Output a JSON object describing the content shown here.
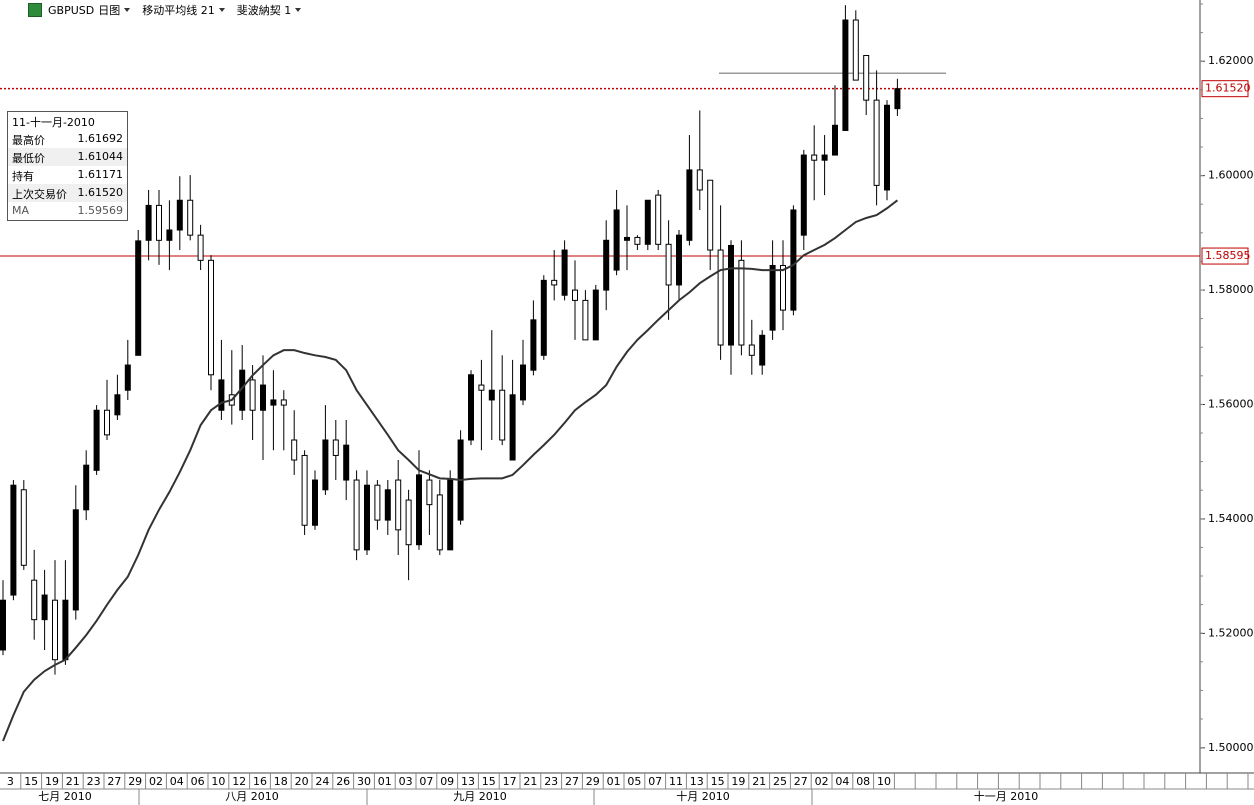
{
  "header": {
    "symbol": "GBPUSD",
    "period": "日图",
    "indicator": "移动平均线 21",
    "tool": "斐波納契 1"
  },
  "info_box": {
    "date": "11-十一月-2010",
    "rows": [
      {
        "label": "最高价",
        "value": "1.61692"
      },
      {
        "label": "最低价",
        "value": "1.61044"
      },
      {
        "label": "持有",
        "value": "1.61171"
      },
      {
        "label": "上次交易价",
        "value": "1.61520"
      },
      {
        "label": "MA",
        "value": "1.59569"
      }
    ]
  },
  "chart_data": {
    "type": "candlestick",
    "categories": [
      "3",
      null,
      "15",
      null,
      "19",
      null,
      "21",
      null,
      "23",
      null,
      "27",
      null,
      "29",
      null,
      "02",
      null,
      "04",
      null,
      "06",
      null,
      "10",
      null,
      "12",
      null,
      "16",
      null,
      "18",
      null,
      "20",
      null,
      "24",
      null,
      "26",
      null,
      "30",
      null,
      "01",
      null,
      "03",
      null,
      "07",
      null,
      "09",
      null,
      "13",
      null,
      "15",
      null,
      "17",
      null,
      "21",
      null,
      "23",
      null,
      "27",
      null,
      "29",
      null,
      "01",
      null,
      "05",
      null,
      "07",
      null,
      "11",
      null,
      "13",
      null,
      "15",
      null,
      "19",
      null,
      "21",
      null,
      "25",
      null,
      "27",
      null,
      "02",
      null,
      "04",
      null,
      "08",
      null,
      "10",
      null,
      null
    ],
    "open": [
      1.5171,
      1.5267,
      1.5451,
      1.5293,
      1.5224,
      1.5258,
      1.5154,
      1.5241,
      1.5416,
      1.5485,
      1.559,
      1.5582,
      1.5625,
      1.5686,
      1.5887,
      1.5948,
      1.5887,
      1.5905,
      1.5957,
      1.5896,
      1.5852,
      1.559,
      1.5617,
      1.559,
      1.5643,
      1.559,
      1.5599,
      1.5608,
      1.5538,
      1.5511,
      1.5389,
      1.5451,
      1.5538,
      1.5468,
      1.5468,
      1.5346,
      1.5459,
      1.5398,
      1.5468,
      1.5433,
      1.5355,
      1.5468,
      1.5442,
      1.5346,
      1.5398,
      1.5538,
      1.5634,
      1.5608,
      1.5625,
      1.5503,
      1.5608,
      1.566,
      1.5686,
      1.5817,
      1.5791,
      1.58,
      1.5782,
      1.5713,
      1.58,
      1.5835,
      1.5887,
      1.5892,
      1.588,
      1.5966,
      1.588,
      1.5809,
      1.5887,
      1.601,
      1.5992,
      1.587,
      1.5704,
      1.5852,
      1.5704,
      1.5669,
      1.573,
      1.5843,
      1.5765,
      1.5896,
      1.6036,
      1.6027,
      1.6036,
      1.6079,
      1.6272,
      1.621,
      1.6132,
      1.5975,
      1.61171
    ],
    "high": [
      1.5293,
      1.5468,
      1.5468,
      1.5346,
      1.5311,
      1.5328,
      1.5328,
      1.5459,
      1.552,
      1.5599,
      1.5643,
      1.5652,
      1.5713,
      1.5905,
      1.5975,
      1.5975,
      1.5957,
      1.5999,
      1.6001,
      1.5914,
      1.5861,
      1.5713,
      1.5695,
      1.5704,
      1.5669,
      1.5686,
      1.566,
      1.5625,
      1.559,
      1.552,
      1.5485,
      1.5599,
      1.5573,
      1.5573,
      1.5485,
      1.5485,
      1.5468,
      1.5468,
      1.5503,
      1.5451,
      1.552,
      1.5485,
      1.5468,
      1.5485,
      1.5555,
      1.566,
      1.5678,
      1.573,
      1.5686,
      1.5678,
      1.5713,
      1.5782,
      1.5826,
      1.587,
      1.5887,
      1.5852,
      1.58,
      1.5809,
      1.5922,
      1.5975,
      1.5948,
      1.5896,
      1.5957,
      1.5975,
      1.5922,
      1.5905,
      1.6071,
      1.6114,
      1.5992,
      1.5948,
      1.5887,
      1.5887,
      1.5748,
      1.573,
      1.5887,
      1.5887,
      1.5948,
      1.6045,
      1.6088,
      1.6071,
      1.6158,
      1.6298,
      1.6289,
      1.621,
      1.6184,
      1.6132,
      1.61692
    ],
    "low": [
      1.5162,
      1.5258,
      1.5311,
      1.5189,
      1.5171,
      1.5128,
      1.5145,
      1.5224,
      1.5398,
      1.5477,
      1.5538,
      1.5573,
      1.5608,
      1.5686,
      1.5852,
      1.5844,
      1.5835,
      1.587,
      1.5887,
      1.5835,
      1.5625,
      1.5573,
      1.5565,
      1.5573,
      1.5538,
      1.5503,
      1.552,
      1.552,
      1.5477,
      1.5372,
      1.5381,
      1.5442,
      1.5468,
      1.5433,
      1.5328,
      1.5337,
      1.5381,
      1.5372,
      1.5337,
      1.5293,
      1.5346,
      1.5372,
      1.5337,
      1.5346,
      1.539,
      1.5529,
      1.552,
      1.5538,
      1.5529,
      1.5503,
      1.5599,
      1.5651,
      1.5678,
      1.5782,
      1.5782,
      1.5713,
      1.5713,
      1.5713,
      1.5765,
      1.5826,
      1.5835,
      1.587,
      1.587,
      1.587,
      1.5748,
      1.5782,
      1.5878,
      1.594,
      1.5835,
      1.5678,
      1.5652,
      1.5686,
      1.5652,
      1.5652,
      1.5713,
      1.573,
      1.5756,
      1.587,
      1.5957,
      1.5966,
      1.6036,
      1.6079,
      1.6167,
      1.6106,
      1.5948,
      1.5957,
      1.61044
    ],
    "close": [
      1.5258,
      1.5459,
      1.5319,
      1.5224,
      1.5267,
      1.5154,
      1.5258,
      1.5416,
      1.5494,
      1.559,
      1.5547,
      1.5617,
      1.5669,
      1.5886,
      1.5948,
      1.5887,
      1.5905,
      1.5957,
      1.5896,
      1.5852,
      1.5652,
      1.5643,
      1.5599,
      1.566,
      1.559,
      1.5634,
      1.5608,
      1.5599,
      1.5503,
      1.5389,
      1.5468,
      1.5538,
      1.5511,
      1.5529,
      1.5346,
      1.5459,
      1.5398,
      1.5451,
      1.5381,
      1.5355,
      1.5477,
      1.5425,
      1.5346,
      1.5468,
      1.5538,
      1.5652,
      1.5625,
      1.5625,
      1.5538,
      1.5617,
      1.5669,
      1.5748,
      1.5817,
      1.5809,
      1.587,
      1.5782,
      1.5713,
      1.58,
      1.5887,
      1.594,
      1.5892,
      1.588,
      1.5957,
      1.588,
      1.5809,
      1.5896,
      1.601,
      1.5975,
      1.587,
      1.5704,
      1.5878,
      1.5704,
      1.5686,
      1.5721,
      1.5843,
      1.5765,
      1.594,
      1.6036,
      1.6027,
      1.6036,
      1.6088,
      1.6272,
      1.6167,
      1.6132,
      1.5983,
      1.6123,
      1.6152
    ],
    "ma": [
      1.5012,
      1.5057,
      1.5098,
      1.5119,
      1.5134,
      1.5145,
      1.5154,
      1.5175,
      1.5197,
      1.5222,
      1.525,
      1.5276,
      1.5299,
      1.5337,
      1.5381,
      1.5416,
      1.5447,
      1.5482,
      1.552,
      1.5564,
      1.559,
      1.5603,
      1.5608,
      1.5629,
      1.5651,
      1.5669,
      1.5686,
      1.5695,
      1.5695,
      1.569,
      1.5686,
      1.5683,
      1.5678,
      1.566,
      1.5625,
      1.5599,
      1.5573,
      1.5547,
      1.552,
      1.5503,
      1.5485,
      1.5478,
      1.5471,
      1.547,
      1.5468,
      1.547,
      1.5471,
      1.5471,
      1.5471,
      1.5477,
      1.5494,
      1.5512,
      1.5529,
      1.5547,
      1.5568,
      1.559,
      1.5604,
      1.5617,
      1.5634,
      1.5666,
      1.5692,
      1.5713,
      1.573,
      1.5748,
      1.5765,
      1.5782,
      1.5796,
      1.5812,
      1.5824,
      1.5835,
      1.5838,
      1.5838,
      1.5837,
      1.5835,
      1.5835,
      1.5835,
      1.5844,
      1.5861,
      1.587,
      1.5879,
      1.5891,
      1.5905,
      1.5919,
      1.5926,
      1.5931,
      1.5943,
      1.59569
    ],
    "ma_color": "#333333",
    "up_color": "#000000",
    "down_color": "#ffffff",
    "month_labels": [
      "七月 2010",
      "八月 2010",
      "九月 2010",
      "十月 2010",
      "十一月 2010"
    ],
    "ylim": [
      1.4956,
      1.6307
    ],
    "yticks": [
      {
        "value": 1.5,
        "label": "1.50000"
      },
      {
        "value": 1.52,
        "label": "1.52000"
      },
      {
        "value": 1.54,
        "label": "1.54000"
      },
      {
        "value": 1.56,
        "label": "1.56000"
      },
      {
        "value": 1.58,
        "label": "1.58000"
      },
      {
        "value": 1.6,
        "label": "1.60000"
      },
      {
        "value": 1.62,
        "label": "1.62000"
      }
    ],
    "hlines": [
      {
        "value": 1.6152,
        "label": "1.61520",
        "color": "#c00000",
        "style": "dotted"
      },
      {
        "value": 1.58595,
        "label": "1.58595",
        "color": "#c00000",
        "style": "solid"
      }
    ],
    "fib_level": {
      "value": 1.6179,
      "color": "#999999"
    }
  }
}
